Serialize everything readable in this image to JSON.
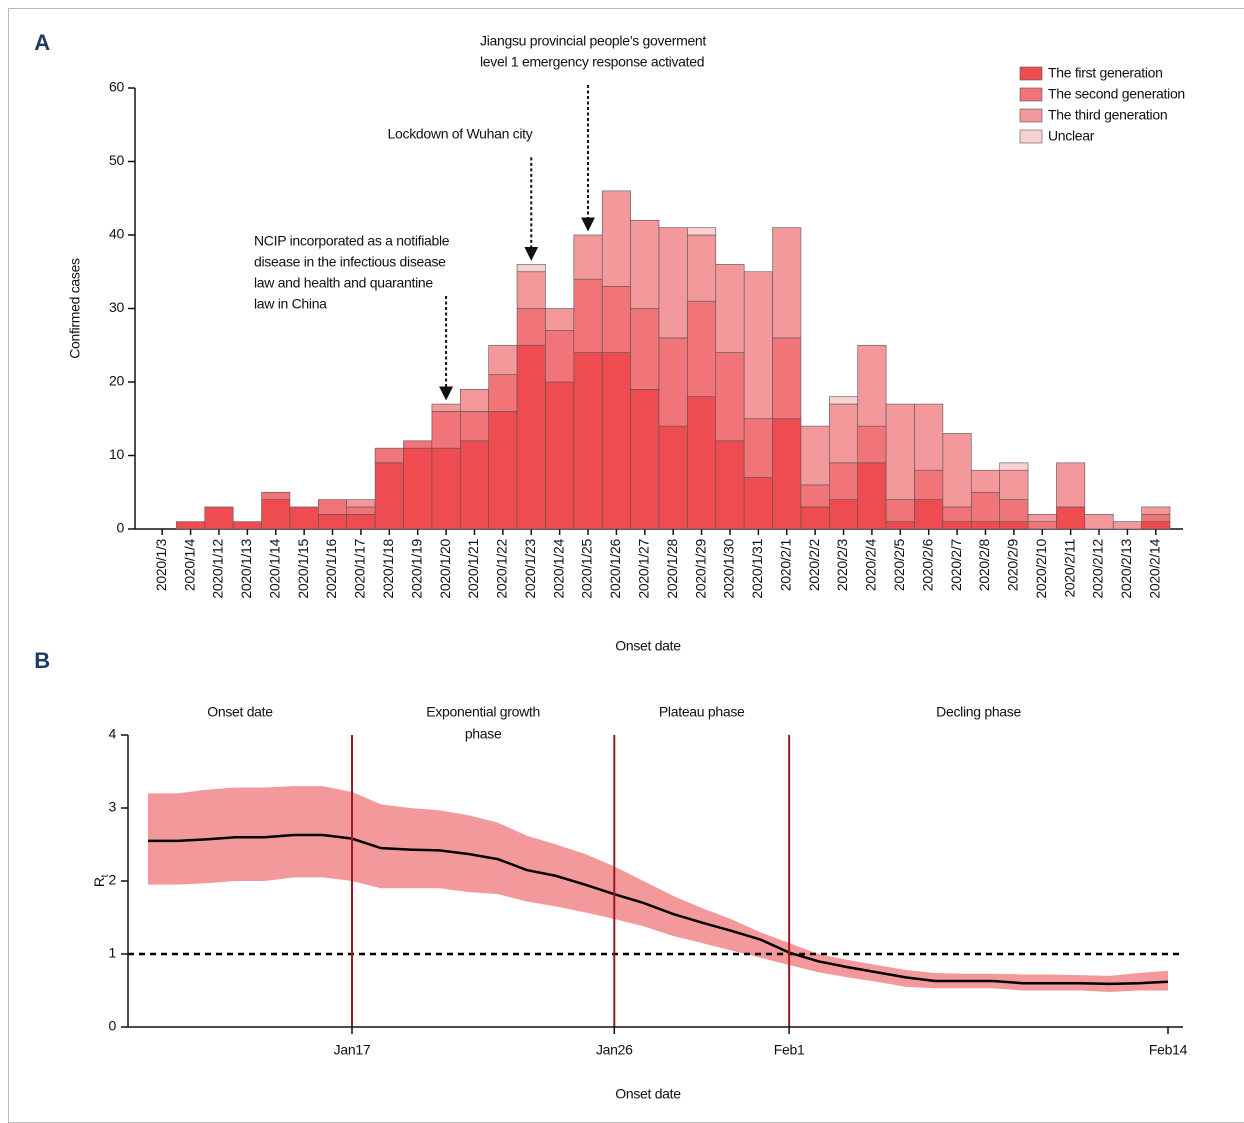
{
  "chart_data": [
    {
      "type": "bar",
      "stacked": true,
      "label": "A",
      "xlabel": "Onset date",
      "ylabel": "Confirmed cases",
      "categories": [
        "2020/1/3",
        "2020/1/4",
        "2020/1/12",
        "2020/1/13",
        "2020/1/14",
        "2020/1/15",
        "2020/1/16",
        "2020/1/17",
        "2020/1/18",
        "2020/1/19",
        "2020/1/20",
        "2020/1/21",
        "2020/1/22",
        "2020/1/23",
        "2020/1/24",
        "2020/1/25",
        "2020/1/26",
        "2020/1/27",
        "2020/1/28",
        "2020/1/29",
        "2020/1/30",
        "2020/1/31",
        "2020/2/1",
        "2020/2/2",
        "2020/2/3",
        "2020/2/4",
        "2020/2/5",
        "2020/2/6",
        "2020/2/7",
        "2020/2/8",
        "2020/2/9",
        "2020/2/10",
        "2020/2/11",
        "2020/2/12",
        "2020/2/13",
        "2020/2/14"
      ],
      "series": [
        {
          "name": "The first generation",
          "color": "#ee4c50",
          "values": [
            0,
            1,
            3,
            1,
            4,
            3,
            2,
            2,
            9,
            11,
            11,
            12,
            16,
            25,
            20,
            24,
            24,
            19,
            14,
            18,
            12,
            7,
            15,
            3,
            4,
            9,
            1,
            4,
            1,
            1,
            1,
            0,
            3,
            0,
            0,
            1
          ]
        },
        {
          "name": "The second generation",
          "color": "#f07478",
          "values": [
            0,
            0,
            0,
            0,
            1,
            0,
            2,
            1,
            2,
            1,
            5,
            4,
            5,
            5,
            7,
            10,
            9,
            11,
            12,
            13,
            12,
            8,
            11,
            3,
            5,
            5,
            3,
            4,
            2,
            4,
            3,
            1,
            0,
            0,
            0,
            1
          ]
        },
        {
          "name": "The third generation",
          "color": "#f4999b",
          "values": [
            0,
            0,
            0,
            0,
            0,
            0,
            0,
            1,
            0,
            0,
            1,
            3,
            4,
            5,
            3,
            6,
            13,
            12,
            15,
            9,
            12,
            20,
            15,
            8,
            8,
            11,
            13,
            9,
            10,
            3,
            4,
            1,
            6,
            2,
            1,
            1
          ]
        },
        {
          "name": "Unclear",
          "color": "#f8d1d0",
          "values": [
            0,
            0,
            0,
            0,
            0,
            0,
            0,
            0,
            0,
            0,
            0,
            0,
            0,
            1,
            0,
            0,
            0,
            0,
            0,
            1,
            0,
            0,
            0,
            0,
            1,
            0,
            0,
            0,
            0,
            0,
            1,
            0,
            0,
            0,
            0,
            0
          ]
        }
      ],
      "ylim": [
        0,
        60
      ],
      "yticks": [
        0,
        10,
        20,
        30,
        40,
        50,
        60
      ],
      "legend": "upper right",
      "annotations": [
        {
          "category": "2020/1/20",
          "lines": [
            "NCIP incorporated as a notifiable",
            "disease in the infectious disease",
            "law and health and quarantine",
            "law in China"
          ]
        },
        {
          "category": "2020/1/23",
          "lines": [
            "Lockdown of Wuhan city"
          ]
        },
        {
          "category": "2020/1/25",
          "lines": [
            "Jiangsu provincial people’s goverment",
            "level 1 emergency response activated"
          ]
        }
      ]
    },
    {
      "type": "line",
      "label": "B",
      "xlabel": "Onset date",
      "ylabel": "R",
      "ylabel_subscript": "t",
      "x": [
        "Jan10",
        "Jan11",
        "Jan12",
        "Jan13",
        "Jan14",
        "Jan15",
        "Jan16",
        "Jan17",
        "Jan18",
        "Jan19",
        "Jan20",
        "Jan21",
        "Jan22",
        "Jan23",
        "Jan24",
        "Jan25",
        "Jan26",
        "Jan27",
        "Jan28",
        "Jan29",
        "Jan30",
        "Jan31",
        "Feb1",
        "Feb2",
        "Feb3",
        "Feb4",
        "Feb5",
        "Feb6",
        "Feb7",
        "Feb8",
        "Feb9",
        "Feb10",
        "Feb11",
        "Feb12",
        "Feb13",
        "Feb14"
      ],
      "series": [
        {
          "color": "#000000",
          "band_color": "#f4999b",
          "values": [
            2.55,
            2.55,
            2.57,
            2.6,
            2.6,
            2.63,
            2.63,
            2.58,
            2.45,
            2.43,
            2.42,
            2.37,
            2.3,
            2.15,
            2.07,
            1.95,
            1.82,
            1.7,
            1.55,
            1.43,
            1.32,
            1.2,
            1.02,
            0.9,
            0.82,
            0.75,
            0.68,
            0.63,
            0.63,
            0.63,
            0.6,
            0.6,
            0.6,
            0.59,
            0.6,
            0.62
          ],
          "upper": [
            3.2,
            3.2,
            3.25,
            3.28,
            3.28,
            3.3,
            3.3,
            3.22,
            3.05,
            3.0,
            2.97,
            2.9,
            2.8,
            2.62,
            2.5,
            2.37,
            2.2,
            2.0,
            1.8,
            1.63,
            1.48,
            1.3,
            1.15,
            1.0,
            0.92,
            0.85,
            0.78,
            0.74,
            0.73,
            0.73,
            0.72,
            0.72,
            0.71,
            0.7,
            0.74,
            0.77
          ],
          "lower": [
            1.95,
            1.95,
            1.97,
            2.0,
            2.0,
            2.05,
            2.05,
            2.0,
            1.9,
            1.9,
            1.9,
            1.85,
            1.82,
            1.72,
            1.65,
            1.57,
            1.48,
            1.38,
            1.25,
            1.15,
            1.05,
            0.95,
            0.85,
            0.75,
            0.68,
            0.62,
            0.55,
            0.53,
            0.53,
            0.53,
            0.5,
            0.5,
            0.5,
            0.48,
            0.5,
            0.5
          ]
        }
      ],
      "xlim": [
        "Jan10",
        "Feb14"
      ],
      "xticks": [
        "Jan17",
        "Jan26",
        "Feb1",
        "Feb14"
      ],
      "ylim": [
        0,
        4
      ],
      "yticks": [
        0,
        1,
        2,
        3,
        4
      ],
      "hline": 1,
      "phase_color": "#9b1c20",
      "phase_boundaries": [
        "Jan17",
        "Jan26",
        "Feb1"
      ],
      "phases": [
        [
          "Onset date"
        ],
        [
          "Exponential growth",
          "phase"
        ],
        [
          "Plateau phase"
        ],
        [
          "Decling phase"
        ]
      ]
    }
  ]
}
